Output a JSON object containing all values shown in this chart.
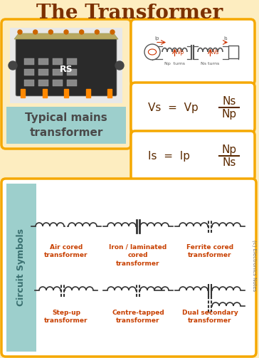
{
  "title": "The Transformer",
  "bg_color": "#FDEDC0",
  "title_color": "#7B3000",
  "orange_border": "#F5A800",
  "teal_bg": "#9DCFCC",
  "label_color": "#C84000",
  "dark_brown": "#5C2A00",
  "formula1_left": "Vs  =  Vp",
  "formula1_top": "Ns",
  "formula1_bottom": "Np",
  "formula2_left": "Is  =  Ip",
  "formula2_top": "Np",
  "formula2_bottom": "Ns",
  "typical_label": "Typical mains\ntransformer",
  "circuit_label": "Circuit Symbols",
  "symbols_row1": [
    "Air cored\ntransformer",
    "Iron / laminated\ncored\ntransformer",
    "Ferrite cored\ntransformer"
  ],
  "symbols_row2": [
    "Step-up\ntransformer",
    "Centre-tapped\ntransformer",
    "Dual secondary\ntransformer"
  ],
  "copyright": "(c) Electronics Notes"
}
